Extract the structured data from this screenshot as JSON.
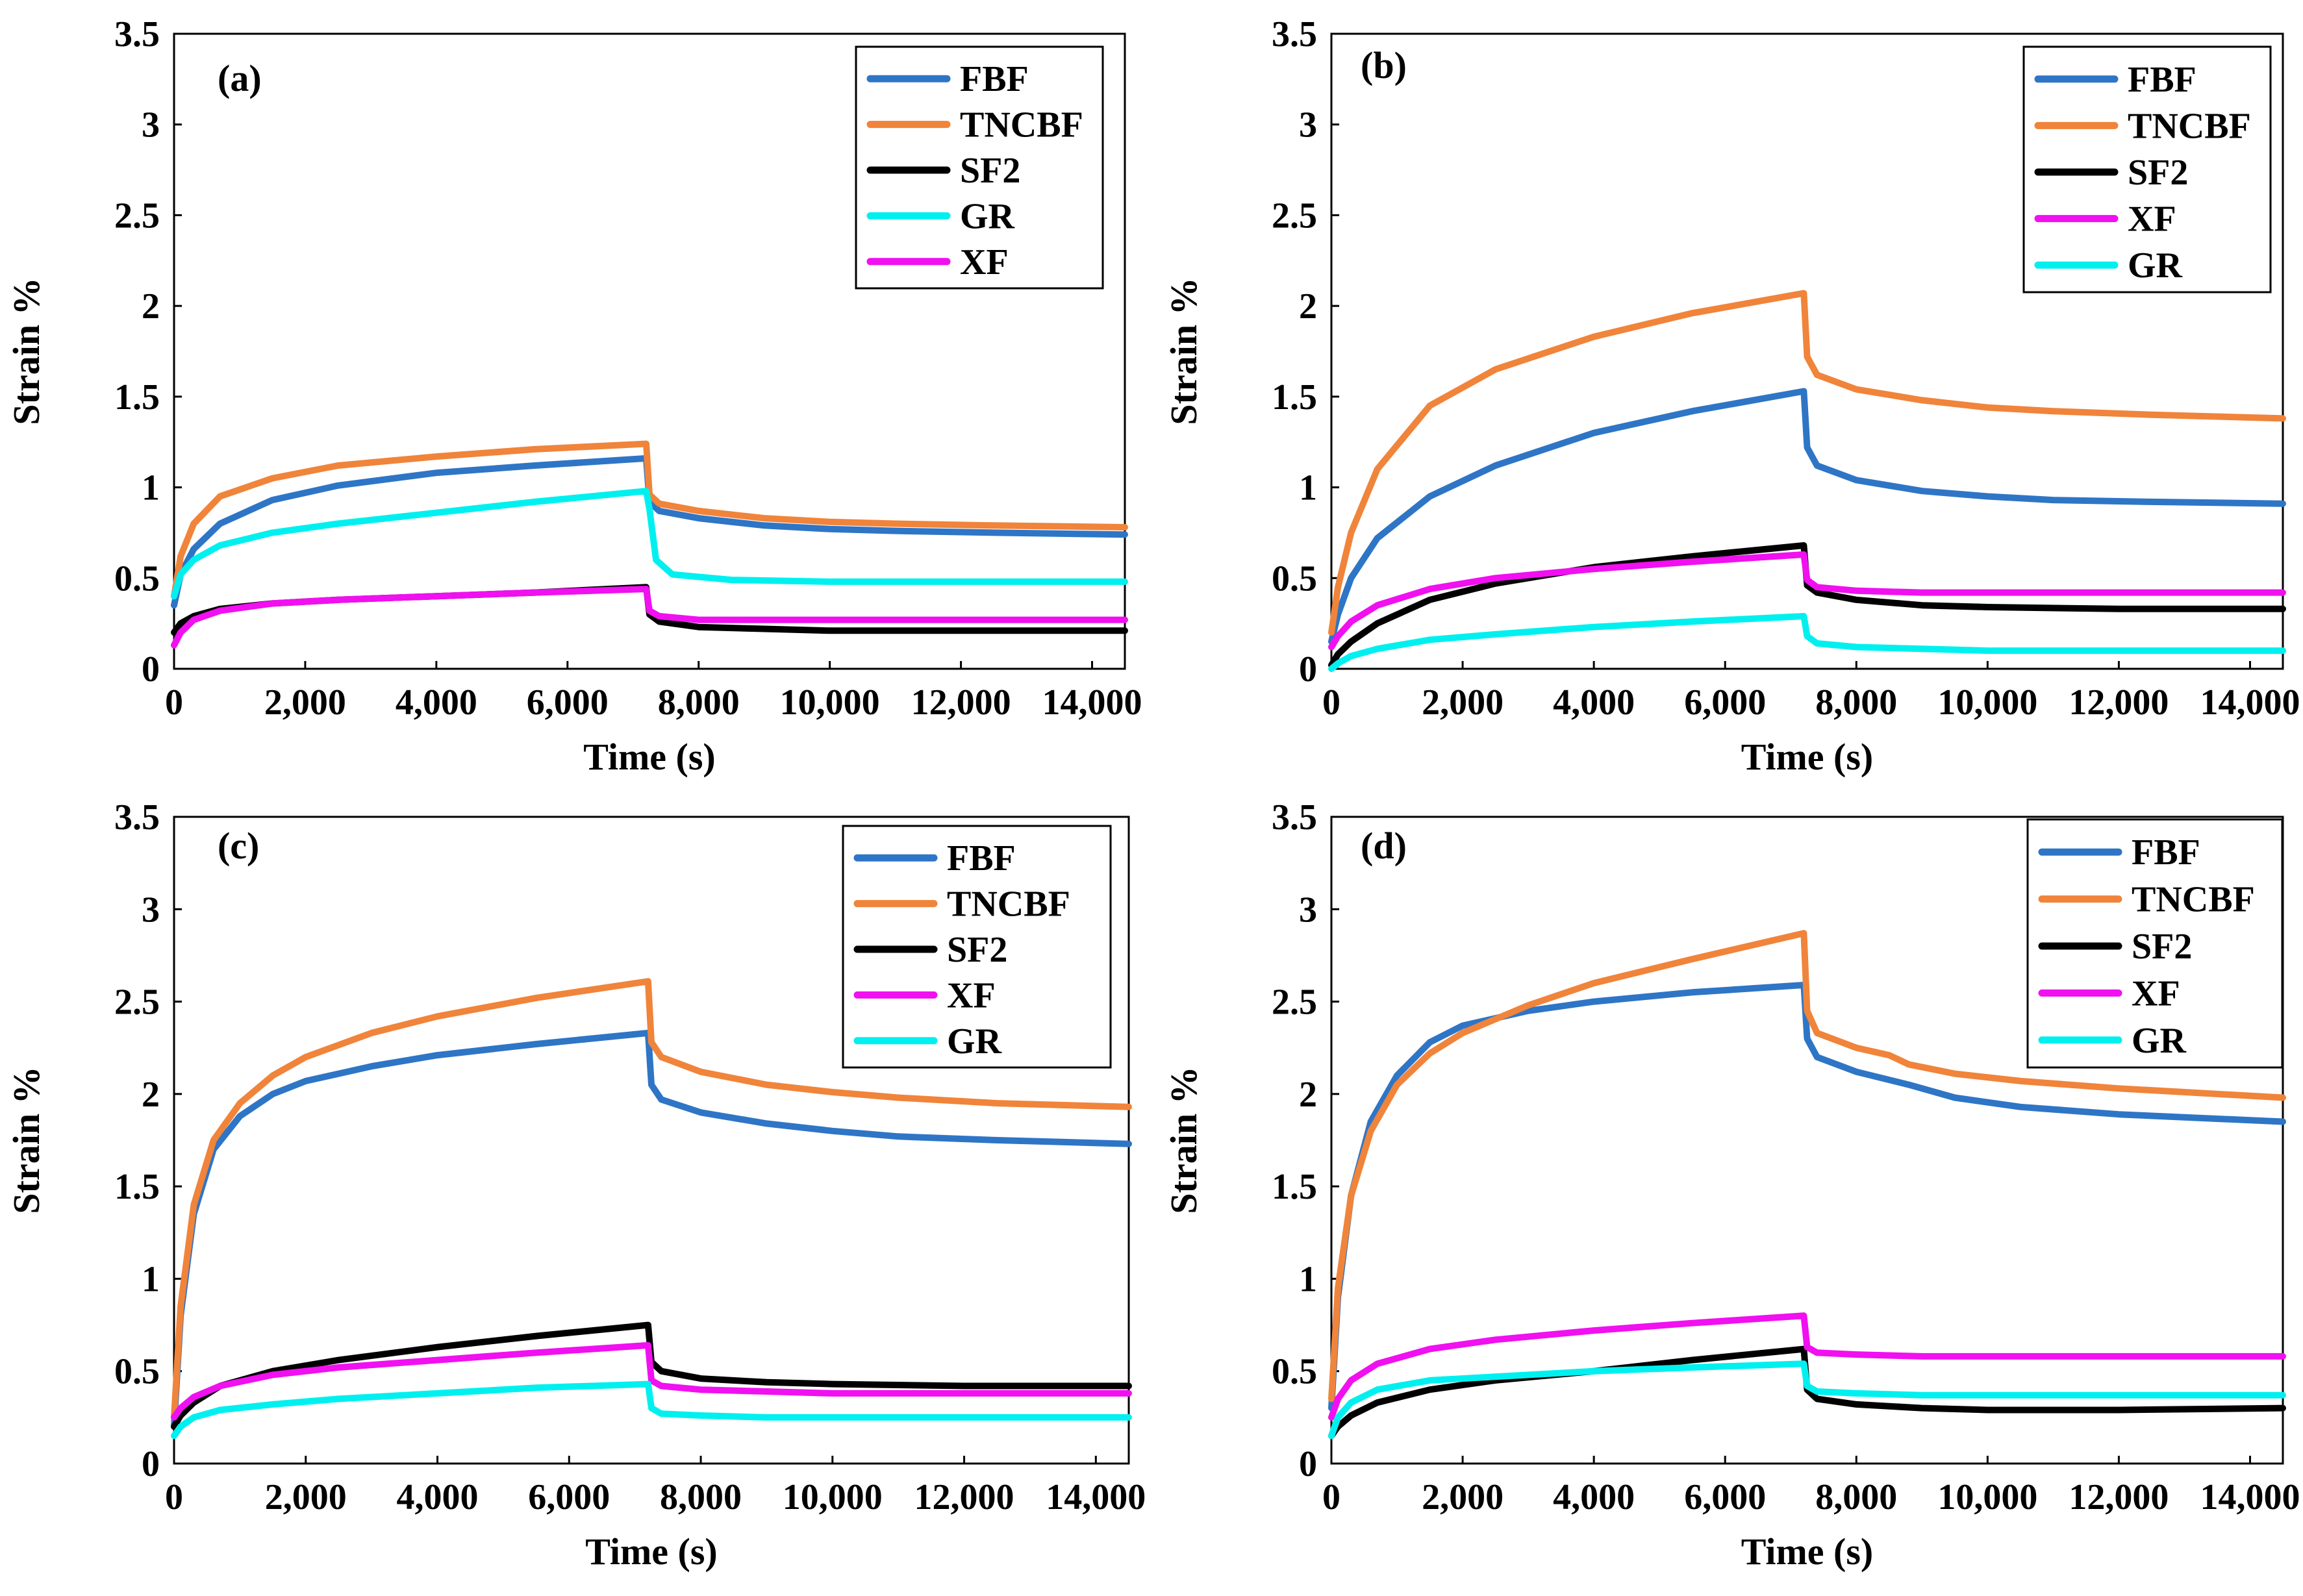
{
  "colors": {
    "FBF": "#2E75C6",
    "TNCBF": "#F0843A",
    "SF2": "#000000",
    "GR": "#00F0F0",
    "XF": "#F010F0"
  },
  "chart_data": [
    {
      "type": "line",
      "panel": "(a)",
      "xlabel": "Time (s)",
      "ylabel": "Strain %",
      "xlim": [
        0,
        14500
      ],
      "ylim": [
        0,
        3.5
      ],
      "xticks": [
        "0",
        "2,000",
        "4,000",
        "6,000",
        "8,000",
        "10,000",
        "12,000",
        "14,000"
      ],
      "yticks": [
        "0",
        "0.5",
        "1",
        "1.5",
        "2",
        "2.5",
        "3",
        "3.5"
      ],
      "grid": false,
      "legend_position": "top-right",
      "legend": [
        "FBF",
        "TNCBF",
        "SF2",
        "GR",
        "XF"
      ],
      "series": [
        {
          "name": "FBF",
          "x": [
            0,
            100,
            300,
            700,
            1500,
            2500,
            4000,
            5500,
            7200,
            7250,
            7400,
            8000,
            9000,
            10000,
            11000,
            12500,
            14500
          ],
          "y": [
            0.35,
            0.52,
            0.66,
            0.8,
            0.93,
            1.01,
            1.08,
            1.12,
            1.16,
            0.92,
            0.87,
            0.83,
            0.79,
            0.77,
            0.76,
            0.75,
            0.74
          ]
        },
        {
          "name": "TNCBF",
          "x": [
            0,
            100,
            300,
            700,
            1500,
            2500,
            4000,
            5500,
            7200,
            7250,
            7400,
            8000,
            9000,
            10000,
            11000,
            12500,
            14500
          ],
          "y": [
            0.4,
            0.62,
            0.8,
            0.95,
            1.05,
            1.12,
            1.17,
            1.21,
            1.24,
            0.96,
            0.91,
            0.87,
            0.83,
            0.81,
            0.8,
            0.79,
            0.78
          ]
        },
        {
          "name": "SF2",
          "x": [
            0,
            100,
            300,
            700,
            1500,
            2500,
            4000,
            5500,
            7200,
            7250,
            7400,
            8000,
            9000,
            10000,
            12000,
            14500
          ],
          "y": [
            0.2,
            0.25,
            0.29,
            0.33,
            0.36,
            0.38,
            0.4,
            0.42,
            0.45,
            0.3,
            0.26,
            0.23,
            0.22,
            0.21,
            0.21,
            0.21
          ]
        },
        {
          "name": "GR",
          "x": [
            0,
            100,
            300,
            700,
            1500,
            2500,
            4000,
            5500,
            7200,
            7250,
            7350,
            7600,
            8500,
            10000,
            12000,
            14500
          ],
          "y": [
            0.4,
            0.52,
            0.6,
            0.68,
            0.75,
            0.8,
            0.86,
            0.92,
            0.98,
            0.88,
            0.6,
            0.52,
            0.49,
            0.48,
            0.48,
            0.48
          ]
        },
        {
          "name": "XF",
          "x": [
            0,
            100,
            300,
            700,
            1500,
            2500,
            4000,
            5500,
            7200,
            7250,
            7400,
            8000,
            9000,
            10000,
            12000,
            14500
          ],
          "y": [
            0.13,
            0.2,
            0.27,
            0.32,
            0.36,
            0.38,
            0.4,
            0.42,
            0.44,
            0.32,
            0.29,
            0.27,
            0.27,
            0.27,
            0.27,
            0.27
          ]
        }
      ]
    },
    {
      "type": "line",
      "panel": "(b)",
      "xlabel": "Time (s)",
      "ylabel": "Strain %",
      "xlim": [
        0,
        14500
      ],
      "ylim": [
        0,
        3.5
      ],
      "xticks": [
        "0",
        "2,000",
        "4,000",
        "6,000",
        "8,000",
        "10,000",
        "12,000",
        "14,000"
      ],
      "yticks": [
        "0",
        "0.5",
        "1",
        "1.5",
        "2",
        "2.5",
        "3",
        "3.5"
      ],
      "grid": false,
      "legend_position": "top-right",
      "legend": [
        "FBF",
        "TNCBF",
        "SF2",
        "XF",
        "GR"
      ],
      "series": [
        {
          "name": "FBF",
          "x": [
            0,
            100,
            300,
            700,
            1500,
            2500,
            4000,
            5500,
            7200,
            7250,
            7400,
            8000,
            9000,
            10000,
            11000,
            12500,
            14500
          ],
          "y": [
            0.15,
            0.3,
            0.5,
            0.72,
            0.95,
            1.12,
            1.3,
            1.42,
            1.53,
            1.22,
            1.12,
            1.04,
            0.98,
            0.95,
            0.93,
            0.92,
            0.91
          ]
        },
        {
          "name": "TNCBF",
          "x": [
            0,
            100,
            300,
            700,
            1500,
            2500,
            4000,
            5500,
            7200,
            7250,
            7400,
            8000,
            9000,
            10000,
            11000,
            12500,
            14500
          ],
          "y": [
            0.2,
            0.45,
            0.75,
            1.1,
            1.45,
            1.65,
            1.83,
            1.96,
            2.07,
            1.72,
            1.62,
            1.54,
            1.48,
            1.44,
            1.42,
            1.4,
            1.38
          ]
        },
        {
          "name": "SF2",
          "x": [
            0,
            100,
            300,
            700,
            1500,
            2500,
            4000,
            5500,
            7200,
            7250,
            7400,
            8000,
            9000,
            10000,
            12000,
            14500
          ],
          "y": [
            0.02,
            0.08,
            0.15,
            0.25,
            0.38,
            0.47,
            0.56,
            0.62,
            0.68,
            0.46,
            0.42,
            0.38,
            0.35,
            0.34,
            0.33,
            0.33
          ]
        },
        {
          "name": "XF",
          "x": [
            0,
            100,
            300,
            700,
            1500,
            2500,
            4000,
            5500,
            7200,
            7250,
            7400,
            8000,
            9000,
            10000,
            12000,
            14500
          ],
          "y": [
            0.12,
            0.18,
            0.26,
            0.35,
            0.44,
            0.5,
            0.55,
            0.59,
            0.63,
            0.49,
            0.45,
            0.43,
            0.42,
            0.42,
            0.42,
            0.42
          ]
        },
        {
          "name": "GR",
          "x": [
            0,
            100,
            300,
            700,
            1500,
            2500,
            4000,
            5500,
            7200,
            7250,
            7400,
            8000,
            9000,
            10000,
            12000,
            14500
          ],
          "y": [
            0.0,
            0.03,
            0.07,
            0.11,
            0.16,
            0.19,
            0.23,
            0.26,
            0.29,
            0.18,
            0.14,
            0.12,
            0.11,
            0.1,
            0.1,
            0.1
          ]
        }
      ]
    },
    {
      "type": "line",
      "panel": "(c)",
      "xlabel": "Time (s)",
      "ylabel": "Strain %",
      "xlim": [
        0,
        14500
      ],
      "ylim": [
        0,
        3.5
      ],
      "xticks": [
        "0",
        "2,000",
        "4,000",
        "6,000",
        "8,000",
        "10,000",
        "12,000",
        "14,000"
      ],
      "yticks": [
        "0",
        "0.5",
        "1",
        "1.5",
        "2",
        "2.5",
        "3",
        "3.5"
      ],
      "grid": false,
      "legend_position": "top-right",
      "legend": [
        "FBF",
        "TNCBF",
        "SF2",
        "XF",
        "GR"
      ],
      "series": [
        {
          "name": "FBF",
          "x": [
            0,
            100,
            300,
            600,
            1000,
            1500,
            2000,
            3000,
            4000,
            5500,
            7200,
            7250,
            7400,
            8000,
            9000,
            10000,
            11000,
            12500,
            14500
          ],
          "y": [
            0.2,
            0.8,
            1.35,
            1.7,
            1.88,
            2.0,
            2.07,
            2.15,
            2.21,
            2.27,
            2.33,
            2.05,
            1.97,
            1.9,
            1.84,
            1.8,
            1.77,
            1.75,
            1.73
          ]
        },
        {
          "name": "TNCBF",
          "x": [
            0,
            100,
            300,
            600,
            1000,
            1500,
            2000,
            3000,
            4000,
            5500,
            7200,
            7250,
            7400,
            8000,
            9000,
            10000,
            11000,
            12500,
            14500
          ],
          "y": [
            0.25,
            0.85,
            1.4,
            1.75,
            1.95,
            2.1,
            2.2,
            2.33,
            2.42,
            2.52,
            2.61,
            2.28,
            2.2,
            2.12,
            2.05,
            2.01,
            1.98,
            1.95,
            1.93
          ]
        },
        {
          "name": "SF2",
          "x": [
            0,
            100,
            300,
            700,
            1500,
            2500,
            4000,
            5500,
            7200,
            7250,
            7400,
            8000,
            9000,
            10000,
            12000,
            14500
          ],
          "y": [
            0.2,
            0.26,
            0.33,
            0.42,
            0.5,
            0.56,
            0.63,
            0.69,
            0.75,
            0.55,
            0.5,
            0.46,
            0.44,
            0.43,
            0.42,
            0.42
          ]
        },
        {
          "name": "XF",
          "x": [
            0,
            100,
            300,
            700,
            1500,
            2500,
            4000,
            5500,
            7200,
            7250,
            7400,
            8000,
            9000,
            10000,
            12000,
            14500
          ],
          "y": [
            0.25,
            0.3,
            0.36,
            0.42,
            0.48,
            0.52,
            0.56,
            0.6,
            0.64,
            0.45,
            0.42,
            0.4,
            0.39,
            0.38,
            0.38,
            0.38
          ]
        },
        {
          "name": "GR",
          "x": [
            0,
            100,
            300,
            700,
            1500,
            2500,
            4000,
            5500,
            7200,
            7250,
            7400,
            8000,
            9000,
            10000,
            12000,
            14500
          ],
          "y": [
            0.15,
            0.2,
            0.25,
            0.29,
            0.32,
            0.35,
            0.38,
            0.41,
            0.43,
            0.3,
            0.27,
            0.26,
            0.25,
            0.25,
            0.25,
            0.25
          ]
        }
      ]
    },
    {
      "type": "line",
      "panel": "(d)",
      "xlabel": "Time (s)",
      "ylabel": "Strain %",
      "xlim": [
        0,
        14500
      ],
      "ylim": [
        0,
        3.5
      ],
      "xticks": [
        "0",
        "2,000",
        "4,000",
        "6,000",
        "8,000",
        "10,000",
        "12,000",
        "14,000"
      ],
      "yticks": [
        "0",
        "0.5",
        "1",
        "1.5",
        "2",
        "2.5",
        "3",
        "3.5"
      ],
      "grid": false,
      "legend_position": "top-right",
      "legend": [
        "FBF",
        "TNCBF",
        "SF2",
        "XF",
        "GR"
      ],
      "series": [
        {
          "name": "FBF",
          "x": [
            0,
            100,
            300,
            600,
            1000,
            1500,
            2000,
            3000,
            4000,
            5500,
            7200,
            7250,
            7400,
            8000,
            8800,
            9500,
            10500,
            12000,
            14500
          ],
          "y": [
            0.3,
            0.9,
            1.45,
            1.85,
            2.1,
            2.28,
            2.37,
            2.45,
            2.5,
            2.55,
            2.59,
            2.3,
            2.2,
            2.12,
            2.05,
            1.98,
            1.93,
            1.89,
            1.85
          ]
        },
        {
          "name": "TNCBF",
          "x": [
            0,
            100,
            300,
            600,
            1000,
            1500,
            2000,
            3000,
            4000,
            5500,
            7200,
            7250,
            7400,
            8000,
            8500,
            8800,
            9500,
            10500,
            12000,
            14500
          ],
          "y": [
            0.35,
            0.95,
            1.45,
            1.8,
            2.05,
            2.22,
            2.33,
            2.48,
            2.6,
            2.73,
            2.87,
            2.45,
            2.33,
            2.25,
            2.21,
            2.16,
            2.11,
            2.07,
            2.03,
            1.98
          ]
        },
        {
          "name": "SF2",
          "x": [
            0,
            100,
            300,
            700,
            1500,
            2500,
            4000,
            5500,
            7200,
            7250,
            7400,
            8000,
            9000,
            10000,
            12000,
            14500
          ],
          "y": [
            0.15,
            0.2,
            0.26,
            0.33,
            0.4,
            0.45,
            0.5,
            0.56,
            0.62,
            0.4,
            0.35,
            0.32,
            0.3,
            0.29,
            0.29,
            0.3
          ]
        },
        {
          "name": "XF",
          "x": [
            0,
            100,
            300,
            700,
            1500,
            2500,
            4000,
            5500,
            7200,
            7250,
            7400,
            8000,
            9000,
            10000,
            12000,
            14500
          ],
          "y": [
            0.25,
            0.35,
            0.45,
            0.54,
            0.62,
            0.67,
            0.72,
            0.76,
            0.8,
            0.63,
            0.6,
            0.59,
            0.58,
            0.58,
            0.58,
            0.58
          ]
        },
        {
          "name": "GR",
          "x": [
            0,
            100,
            300,
            700,
            1500,
            2500,
            4000,
            5500,
            7200,
            7250,
            7400,
            8000,
            9000,
            10000,
            12000,
            14500
          ],
          "y": [
            0.15,
            0.25,
            0.33,
            0.4,
            0.45,
            0.47,
            0.5,
            0.52,
            0.54,
            0.42,
            0.39,
            0.38,
            0.37,
            0.37,
            0.37,
            0.37
          ]
        }
      ]
    }
  ]
}
